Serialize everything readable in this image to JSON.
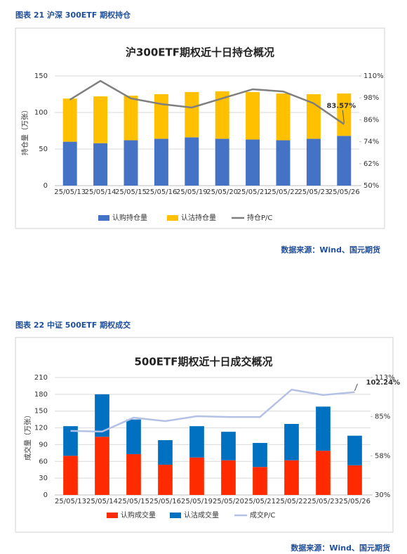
{
  "captions": [
    "图表 21 沪深 300ETF 期权持仓",
    "图表 22 中证 500ETF 期权成交"
  ],
  "sources": [
    "数据来源：Wind、国元期货",
    "数据来源：Wind、国元期货"
  ],
  "chart_data": [
    {
      "type": "bar",
      "stacked": true,
      "grid": true,
      "legend": "bottom",
      "title": "沪300ETF期权近十日持仓概况",
      "y_label": "持仓量（万张）",
      "categories": [
        "25/05/13",
        "25/05/14",
        "25/05/15",
        "25/05/16",
        "25/05/19",
        "25/05/20",
        "25/05/21",
        "25/05/22",
        "25/05/23",
        "25/05/26"
      ],
      "ylim": [
        0,
        150
      ],
      "yticks": [
        0,
        50,
        100,
        150
      ],
      "y2lim": [
        50,
        110
      ],
      "y2ticks": [
        {
          "value": 50,
          "label": "50%"
        },
        {
          "value": 62,
          "label": "62%"
        },
        {
          "value": 74,
          "label": "74%"
        },
        {
          "value": 86,
          "label": "86%"
        },
        {
          "value": 98,
          "label": "98%"
        },
        {
          "value": 110,
          "label": "110%"
        }
      ],
      "series": [
        {
          "name": "认购持仓量",
          "color": "#4472c4",
          "values": [
            60,
            58,
            62,
            64,
            66,
            64,
            63,
            62,
            64,
            68
          ]
        },
        {
          "name": "认沽持仓量",
          "color": "#ffc000",
          "values": [
            59,
            64,
            61,
            61,
            62,
            65,
            65,
            64,
            61,
            58
          ]
        },
        {
          "name": "持仓P/C",
          "type": "line",
          "axis": "y2",
          "color": "#7f7f7f",
          "values": [
            97,
            107.3,
            97.7,
            94.6,
            92.7,
            97.7,
            102.7,
            101.5,
            95,
            83.57
          ],
          "value_labels": [
            null,
            null,
            null,
            null,
            null,
            null,
            null,
            null,
            null,
            "83.57%"
          ]
        }
      ]
    },
    {
      "type": "bar",
      "stacked": true,
      "grid": true,
      "legend": "bottom",
      "title": "500ETF期权近十日成交概况",
      "y_label": "成交量（万张）",
      "categories": [
        "25/05/13",
        "25/05/14",
        "25/05/15",
        "25/05/16",
        "25/05/19",
        "25/05/20",
        "25/05/21",
        "25/05/22",
        "25/05/23",
        "25/05/26"
      ],
      "ylim": [
        0,
        210
      ],
      "yticks": [
        0,
        30,
        60,
        90,
        120,
        150,
        180,
        210
      ],
      "y2lim": [
        30,
        112.5
      ],
      "y2ticks": [
        {
          "value": 30,
          "label": "30%"
        },
        {
          "value": 57.5,
          "label": "58%"
        },
        {
          "value": 85,
          "label": "85%"
        },
        {
          "value": 112.5,
          "label": "113%"
        }
      ],
      "series": [
        {
          "name": "认购成交量",
          "color": "#ff2a00",
          "values": [
            70,
            104,
            73,
            54,
            67,
            62,
            50,
            62,
            79,
            53
          ]
        },
        {
          "name": "认沽成交量",
          "color": "#0070c0",
          "values": [
            53,
            76,
            62,
            44,
            56,
            51,
            43,
            65,
            79,
            53
          ]
        },
        {
          "name": "成交P/C",
          "type": "line",
          "axis": "y2",
          "color": "#b4c1e4",
          "values": [
            75,
            74.5,
            84.3,
            81.9,
            85.3,
            84.8,
            84.8,
            104,
            100.2,
            102.24
          ],
          "value_labels": [
            null,
            null,
            null,
            null,
            null,
            null,
            null,
            null,
            null,
            "102.24%"
          ]
        }
      ]
    }
  ]
}
